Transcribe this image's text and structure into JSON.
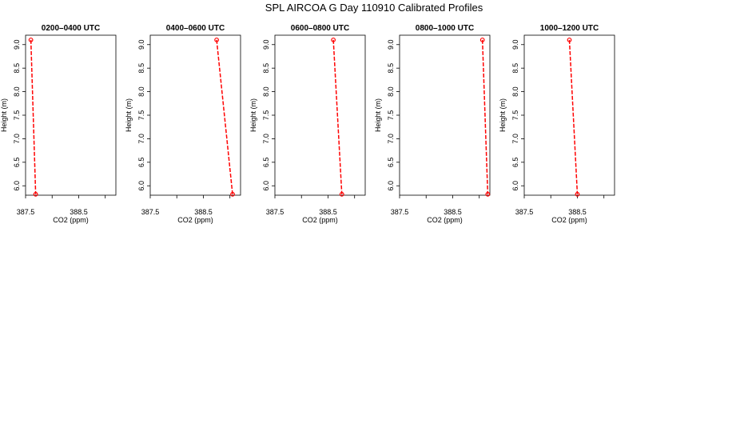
{
  "figure": {
    "title": "SPL AIRCOA G  Day 110910  Calibrated Profiles"
  },
  "colors": {
    "series": "#ff0000",
    "axes": "#000000"
  },
  "chart_data": [
    {
      "type": "line",
      "title": "0200–0400 UTC",
      "xlabel": "CO2 (ppm)",
      "ylabel": "Height (m)",
      "xlim": [
        387.5,
        389.2
      ],
      "ylim": [
        5.8,
        9.2
      ],
      "x_ticks": [
        "387.5",
        "388.5"
      ],
      "x_tick_values": [
        387.5,
        388.5
      ],
      "y_ticks": [
        "6.0",
        "6.5",
        "7.0",
        "7.5",
        "8.0",
        "8.5",
        "9.0"
      ],
      "y_tick_values": [
        6.0,
        6.5,
        7.0,
        7.5,
        8.0,
        8.5,
        9.0
      ],
      "x_minor_ticks": [
        387.5,
        388.0,
        388.5,
        389.0
      ],
      "series": [
        {
          "points": [
            {
              "x": 387.6,
              "y": 9.1
            },
            {
              "x": 387.69,
              "y": 5.82
            }
          ]
        }
      ]
    },
    {
      "type": "line",
      "title": "0400–0600 UTC",
      "xlabel": "CO2 (ppm)",
      "ylabel": "Height (m)",
      "xlim": [
        387.5,
        389.2
      ],
      "ylim": [
        5.8,
        9.2
      ],
      "x_ticks": [
        "387.5",
        "388.5"
      ],
      "x_tick_values": [
        387.5,
        388.5
      ],
      "y_ticks": [
        "6.0",
        "6.5",
        "7.0",
        "7.5",
        "8.0",
        "8.5",
        "9.0"
      ],
      "y_tick_values": [
        6.0,
        6.5,
        7.0,
        7.5,
        8.0,
        8.5,
        9.0
      ],
      "x_minor_ticks": [
        387.5,
        388.0,
        388.5,
        389.0
      ],
      "series": [
        {
          "points": [
            {
              "x": 388.75,
              "y": 9.1
            },
            {
              "x": 389.05,
              "y": 5.82
            }
          ]
        }
      ]
    },
    {
      "type": "line",
      "title": "0600–0800 UTC",
      "xlabel": "CO2 (ppm)",
      "ylabel": "Height (m)",
      "xlim": [
        387.5,
        389.2
      ],
      "ylim": [
        5.8,
        9.2
      ],
      "x_ticks": [
        "387.5",
        "388.5"
      ],
      "x_tick_values": [
        387.5,
        388.5
      ],
      "y_ticks": [
        "6.0",
        "6.5",
        "7.0",
        "7.5",
        "8.0",
        "8.5",
        "9.0"
      ],
      "y_tick_values": [
        6.0,
        6.5,
        7.0,
        7.5,
        8.0,
        8.5,
        9.0
      ],
      "x_minor_ticks": [
        387.5,
        388.0,
        388.5,
        389.0
      ],
      "series": [
        {
          "points": [
            {
              "x": 388.6,
              "y": 9.1
            },
            {
              "x": 388.76,
              "y": 5.82
            }
          ]
        }
      ]
    },
    {
      "type": "line",
      "title": "0800–1000 UTC",
      "xlabel": "CO2 (ppm)",
      "ylabel": "Height (m)",
      "xlim": [
        387.5,
        389.2
      ],
      "ylim": [
        5.8,
        9.2
      ],
      "x_ticks": [
        "387.5",
        "388.5"
      ],
      "x_tick_values": [
        387.5,
        388.5
      ],
      "y_ticks": [
        "6.0",
        "6.5",
        "7.0",
        "7.5",
        "8.0",
        "8.5",
        "9.0"
      ],
      "y_tick_values": [
        6.0,
        6.5,
        7.0,
        7.5,
        8.0,
        8.5,
        9.0
      ],
      "x_minor_ticks": [
        387.5,
        388.0,
        388.5,
        389.0
      ],
      "series": [
        {
          "points": [
            {
              "x": 389.06,
              "y": 9.1
            },
            {
              "x": 389.16,
              "y": 5.82
            }
          ]
        }
      ]
    },
    {
      "type": "line",
      "title": "1000–1200 UTC",
      "xlabel": "CO2 (ppm)",
      "ylabel": "Height (m)",
      "xlim": [
        387.5,
        389.2
      ],
      "ylim": [
        5.8,
        9.2
      ],
      "x_ticks": [
        "387.5",
        "388.5"
      ],
      "x_tick_values": [
        387.5,
        388.5
      ],
      "y_ticks": [
        "6.0",
        "6.5",
        "7.0",
        "7.5",
        "8.0",
        "8.5",
        "9.0"
      ],
      "y_tick_values": [
        6.0,
        6.5,
        7.0,
        7.5,
        8.0,
        8.5,
        9.0
      ],
      "x_minor_ticks": [
        387.5,
        388.0,
        388.5,
        389.0
      ],
      "series": [
        {
          "points": [
            {
              "x": 388.35,
              "y": 9.1
            },
            {
              "x": 388.5,
              "y": 5.82
            }
          ]
        }
      ]
    }
  ]
}
